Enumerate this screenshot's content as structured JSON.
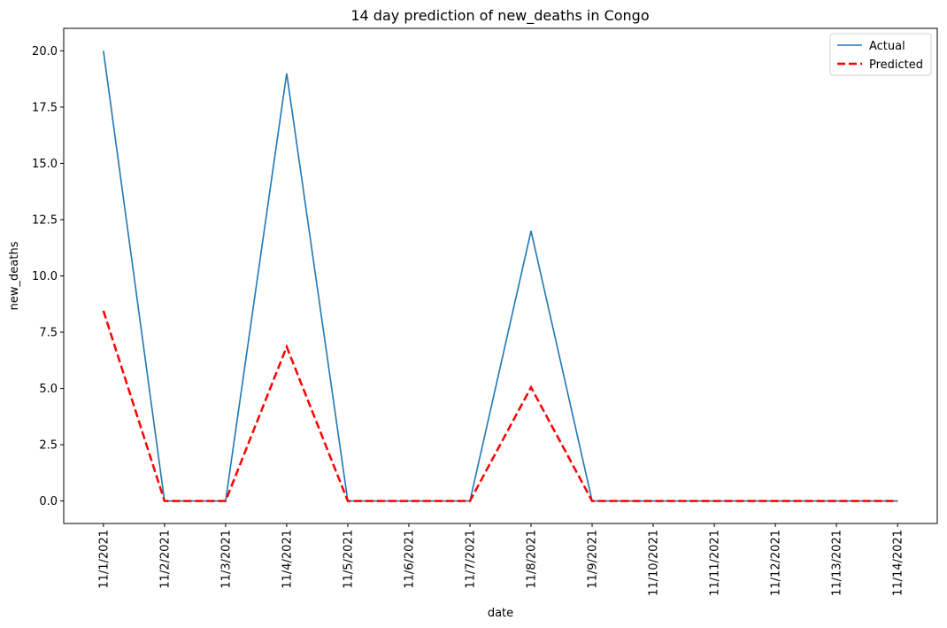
{
  "chart_data": {
    "type": "line",
    "title": "14 day prediction of new_deaths in Congo",
    "xlabel": "date",
    "ylabel": "new_deaths",
    "categories": [
      "11/1/2021",
      "11/2/2021",
      "11/3/2021",
      "11/4/2021",
      "11/5/2021",
      "11/6/2021",
      "11/7/2021",
      "11/8/2021",
      "11/9/2021",
      "11/10/2021",
      "11/11/2021",
      "11/12/2021",
      "11/13/2021",
      "11/14/2021"
    ],
    "series": [
      {
        "name": "Actual",
        "color": "#1f77b4",
        "style": "solid",
        "values": [
          20,
          0,
          0,
          19,
          0,
          0,
          0,
          12,
          0,
          0,
          0,
          0,
          0,
          0
        ]
      },
      {
        "name": "Predicted",
        "color": "#ff0000",
        "style": "dashed",
        "values": [
          8.45,
          0,
          0,
          6.85,
          0,
          0,
          0,
          5.05,
          0,
          0,
          0,
          0,
          0,
          0
        ]
      }
    ],
    "yticks": [
      0.0,
      2.5,
      5.0,
      7.5,
      10.0,
      12.5,
      15.0,
      17.5,
      20.0
    ],
    "ytick_labels": [
      "0.0",
      "2.5",
      "5.0",
      "7.5",
      "10.0",
      "12.5",
      "15.0",
      "17.5",
      "20.0"
    ],
    "ylim": [
      -1.0,
      21.0
    ],
    "grid": false,
    "legend_position": "top-right"
  }
}
